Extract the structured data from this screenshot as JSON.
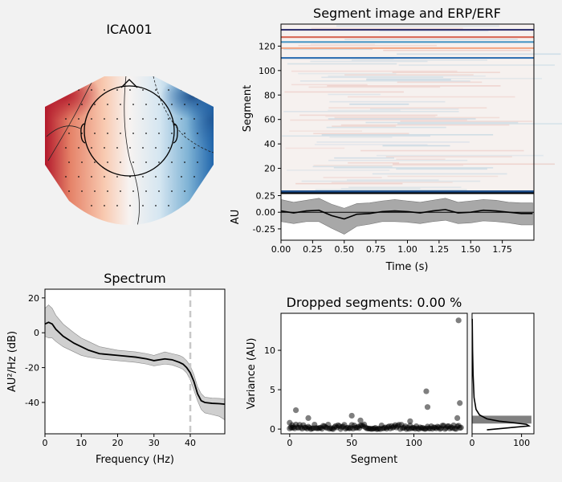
{
  "topomap": {
    "title": "ICA001",
    "colors": {
      "positive": "#b2182b",
      "negative": "#2166ac",
      "neutral": "#f7f7f7"
    }
  },
  "chart_data": [
    {
      "type": "heatmap",
      "title": "Segment image and ERP/ERF",
      "ylabel": "Segment",
      "yticks": [
        20,
        40,
        60,
        80,
        100,
        120
      ],
      "ylim": [
        0,
        138
      ],
      "xlim": [
        0,
        2
      ],
      "dark_bands": [
        {
          "segment": 134,
          "color": "#2b2b6b"
        },
        {
          "segment": 111,
          "color": "#2b6cb0"
        },
        {
          "segment": 128,
          "color": "#d6604d"
        },
        {
          "segment": 124,
          "color": "#4393c3"
        },
        {
          "segment": 119,
          "color": "#f4a582"
        }
      ]
    },
    {
      "type": "line",
      "xlabel": "Time (s)",
      "ylabel": "AU",
      "xticks": [
        "0.00",
        "0.25",
        "0.50",
        "0.75",
        "1.00",
        "1.25",
        "1.50",
        "1.75"
      ],
      "yticks": [
        "0.25",
        "0.00",
        "-0.25"
      ],
      "xlim": [
        0,
        2
      ],
      "ylim": [
        -0.42,
        0.28
      ],
      "x": [
        0.0,
        0.1,
        0.2,
        0.3,
        0.4,
        0.5,
        0.6,
        0.7,
        0.8,
        0.9,
        1.0,
        1.1,
        1.2,
        1.3,
        1.4,
        1.5,
        1.6,
        1.7,
        1.8,
        1.9,
        1.99
      ],
      "mean": [
        0.02,
        -0.01,
        0.02,
        0.03,
        -0.05,
        -0.1,
        -0.03,
        -0.02,
        0.01,
        0.02,
        0.01,
        -0.01,
        0.02,
        0.04,
        -0.01,
        0.0,
        0.03,
        0.02,
        0.0,
        -0.02,
        -0.02
      ],
      "upper": [
        0.19,
        0.15,
        0.18,
        0.21,
        0.12,
        0.06,
        0.13,
        0.14,
        0.17,
        0.19,
        0.17,
        0.15,
        0.18,
        0.21,
        0.15,
        0.17,
        0.19,
        0.18,
        0.15,
        0.14,
        0.14
      ],
      "lower": [
        -0.14,
        -0.17,
        -0.14,
        -0.14,
        -0.24,
        -0.33,
        -0.21,
        -0.18,
        -0.14,
        -0.14,
        -0.15,
        -0.17,
        -0.14,
        -0.12,
        -0.17,
        -0.16,
        -0.13,
        -0.14,
        -0.16,
        -0.19,
        -0.19
      ]
    },
    {
      "type": "line",
      "title": "Spectrum",
      "xlabel": "Frequency (Hz)",
      "ylabel": "AU²/Hz (dB)",
      "xticks": [
        "0",
        "10",
        "20",
        "30",
        "40"
      ],
      "yticks": [
        "20",
        "0",
        "-20",
        "-40"
      ],
      "xlim": [
        0,
        49.5
      ],
      "ylim": [
        -58,
        25
      ],
      "vline": 40,
      "x": [
        0,
        1,
        2,
        3,
        5,
        8,
        10,
        12,
        15,
        20,
        25,
        28,
        30,
        33,
        35,
        37,
        38,
        39,
        40,
        41,
        42,
        43,
        44,
        46,
        48,
        49.5
      ],
      "mean": [
        5,
        6,
        5,
        2,
        -2,
        -6,
        -8,
        -10,
        -12,
        -13,
        -14,
        -15,
        -16,
        -15,
        -15.5,
        -17,
        -18,
        -20,
        -23,
        -28,
        -35,
        -39,
        -40,
        -40.5,
        -40.7,
        -41
      ],
      "upper": [
        14,
        16,
        14,
        10,
        5,
        0,
        -3,
        -5,
        -8,
        -10,
        -11,
        -12,
        -13,
        -11,
        -12,
        -13,
        -14,
        -16,
        -19,
        -24,
        -31,
        -35,
        -37,
        -37.5,
        -37.7,
        -38
      ],
      "lower": [
        -2,
        -3,
        -3,
        -5,
        -8,
        -11,
        -13,
        -14,
        -15,
        -16,
        -17,
        -18,
        -19,
        -18,
        -18.5,
        -20,
        -21,
        -23,
        -27,
        -33,
        -39,
        -44,
        -46,
        -47,
        -48,
        -50
      ]
    },
    {
      "type": "scatter",
      "title": "Dropped segments: 0.00 %",
      "xlabel": "Segment",
      "ylabel": "Variance (AU)",
      "xticks": [
        "0",
        "50",
        "100"
      ],
      "yticks": [
        "0",
        "5",
        "10"
      ],
      "xlim": [
        -7,
        143
      ],
      "ylim": [
        -0.6,
        14.7
      ],
      "outliers": [
        [
          0,
          0.8
        ],
        [
          2,
          0.5
        ],
        [
          5,
          2.4
        ],
        [
          15,
          1.4
        ],
        [
          50,
          1.7
        ],
        [
          57,
          1.1
        ],
        [
          97,
          1.0
        ],
        [
          110,
          4.8
        ],
        [
          111,
          2.8
        ],
        [
          136,
          13.8
        ],
        [
          137,
          3.3
        ],
        [
          135,
          1.4
        ]
      ],
      "baseline_count": 139,
      "baseline_range": [
        0.0,
        0.6
      ]
    },
    {
      "type": "area",
      "xticks": [
        "0",
        "100"
      ],
      "xlim": [
        0,
        125
      ],
      "ylim": [
        -0.6,
        14.7
      ],
      "histogram": [
        {
          "range": [
            0.7,
            1.7
          ],
          "value": 120
        }
      ],
      "kde_y": [
        -0.1,
        0.2,
        0.4,
        0.6,
        0.8,
        1.0,
        1.3,
        1.8,
        2.5,
        4,
        7,
        10,
        14
      ],
      "kde_x": [
        30,
        80,
        115,
        110,
        85,
        55,
        30,
        15,
        8,
        4,
        2,
        1,
        0.3
      ]
    }
  ]
}
